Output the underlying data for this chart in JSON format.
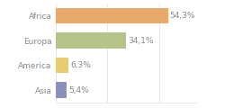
{
  "categories": [
    "Asia",
    "America",
    "Europa",
    "Africa"
  ],
  "values": [
    5.4,
    6.3,
    34.1,
    54.3
  ],
  "labels": [
    "5,4%",
    "6,3%",
    "34,1%",
    "54,3%"
  ],
  "bar_colors": [
    "#8b91bc",
    "#e8cc6e",
    "#b5c48a",
    "#e8a96a"
  ],
  "background_color": "#ffffff",
  "xlim": [
    0,
    68
  ],
  "label_fontsize": 6.5,
  "tick_fontsize": 6.5,
  "text_color": "#888888",
  "grid_color": "#e0e0e0"
}
